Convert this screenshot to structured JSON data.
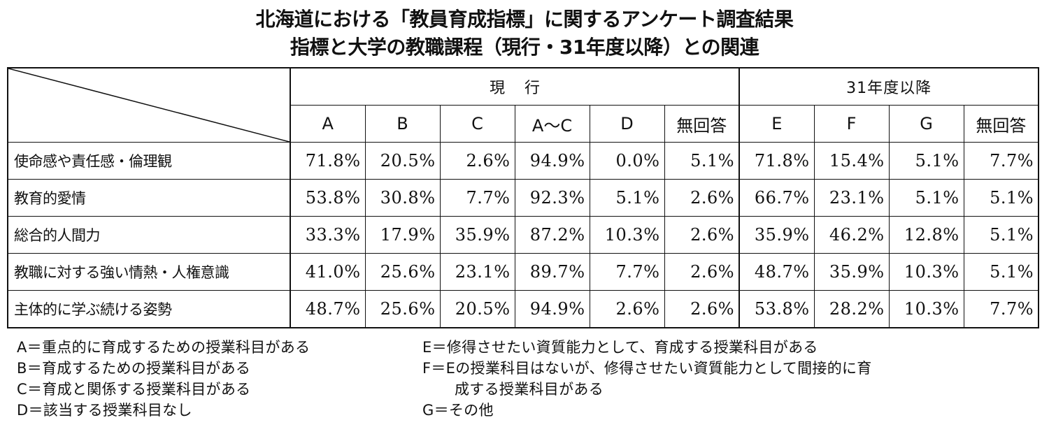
{
  "title_line1": "北海道における「教員育成指標」に関するアンケート調査結果",
  "title_line2": "指標と大学の教職課程（現行・31年度以降）との関連",
  "table": {
    "group_current": "現行",
    "group_future": "31年度以降",
    "columns_current": [
      "A",
      "B",
      "C",
      "A～C",
      "D",
      "無回答"
    ],
    "columns_future": [
      "E",
      "F",
      "G",
      "無回答"
    ],
    "rows": [
      {
        "label": "使命感や責任感・倫理観",
        "values": [
          "71.8%",
          "20.5%",
          "2.6%",
          "94.9%",
          "0.0%",
          "5.1%",
          "71.8%",
          "15.4%",
          "5.1%",
          "7.7%"
        ]
      },
      {
        "label": "教育的愛情",
        "values": [
          "53.8%",
          "30.8%",
          "7.7%",
          "92.3%",
          "5.1%",
          "2.6%",
          "66.7%",
          "23.1%",
          "5.1%",
          "5.1%"
        ]
      },
      {
        "label": "総合的人間力",
        "values": [
          "33.3%",
          "17.9%",
          "35.9%",
          "87.2%",
          "10.3%",
          "2.6%",
          "35.9%",
          "46.2%",
          "12.8%",
          "5.1%"
        ]
      },
      {
        "label": "教職に対する強い情熱・人権意識",
        "values": [
          "41.0%",
          "25.6%",
          "23.1%",
          "89.7%",
          "7.7%",
          "2.6%",
          "48.7%",
          "35.9%",
          "10.3%",
          "5.1%"
        ]
      },
      {
        "label": "主体的に学ぶ続ける姿勢",
        "values": [
          "48.7%",
          "25.6%",
          "20.5%",
          "94.9%",
          "2.6%",
          "2.6%",
          "53.8%",
          "28.2%",
          "10.3%",
          "7.7%"
        ]
      }
    ]
  },
  "notes_left": [
    "A＝重点的に育成するための授業科目がある",
    "B＝育成するための授業科目がある",
    "C＝育成と関係する授業科目がある",
    "D＝該当する授業科目なし"
  ],
  "notes_right": {
    "e": "E＝修得させたい資質能力として、育成する授業科目がある",
    "f_line1": "F＝Eの授業科目はないが、修得させたい資質能力として間接的に育",
    "f_line2": "成する授業科目がある",
    "g": "G＝その他"
  }
}
